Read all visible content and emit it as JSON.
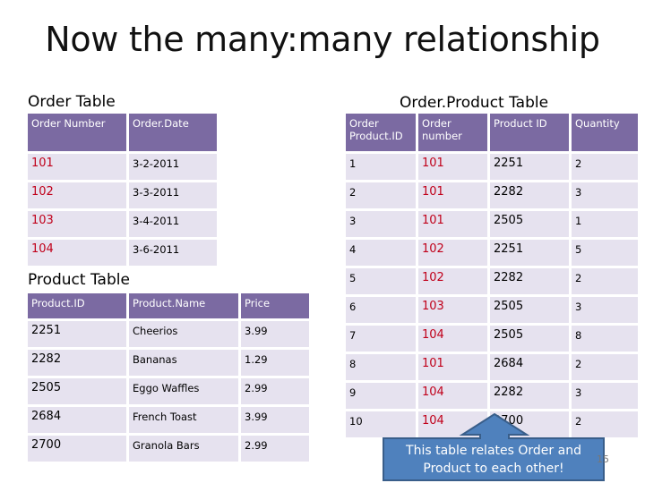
{
  "title": "Now the many:many relationship",
  "order_table": {
    "caption": "Order Table",
    "headers": [
      "Order Number",
      "Order.Date"
    ],
    "rows": [
      [
        "101",
        "3-2-2011"
      ],
      [
        "102",
        "3-3-2011"
      ],
      [
        "103",
        "3-4-2011"
      ],
      [
        "104",
        "3-6-2011"
      ]
    ]
  },
  "product_table": {
    "caption": "Product Table",
    "headers": [
      "Product.ID",
      "Product.Name",
      "Price"
    ],
    "rows": [
      [
        "2251",
        "Cheerios",
        "3.99"
      ],
      [
        "2282",
        "Bananas",
        "1.29"
      ],
      [
        "2505",
        "Eggo Waffles",
        "2.99"
      ],
      [
        "2684",
        "French Toast",
        "3.99"
      ],
      [
        "2700",
        "Granola Bars",
        "2.99"
      ]
    ]
  },
  "order_product_table": {
    "caption": "Order.Product Table",
    "headers": [
      "Order Product.ID",
      "Order number",
      "Product ID",
      "Quantity"
    ],
    "rows": [
      [
        "1",
        "101",
        "2251",
        "2"
      ],
      [
        "2",
        "101",
        "2282",
        "3"
      ],
      [
        "3",
        "101",
        "2505",
        "1"
      ],
      [
        "4",
        "102",
        "2251",
        "5"
      ],
      [
        "5",
        "102",
        "2282",
        "2"
      ],
      [
        "6",
        "103",
        "2505",
        "3"
      ],
      [
        "7",
        "104",
        "2505",
        "8"
      ],
      [
        "8",
        "101",
        "2684",
        "2"
      ],
      [
        "9",
        "104",
        "2282",
        "3"
      ],
      [
        "10",
        "104",
        "2700",
        "2"
      ]
    ]
  },
  "callout": {
    "text": "This table relates Order and Product to each other!",
    "fill": "#4f81bd",
    "stroke": "#395e8a"
  },
  "page_number": "15"
}
